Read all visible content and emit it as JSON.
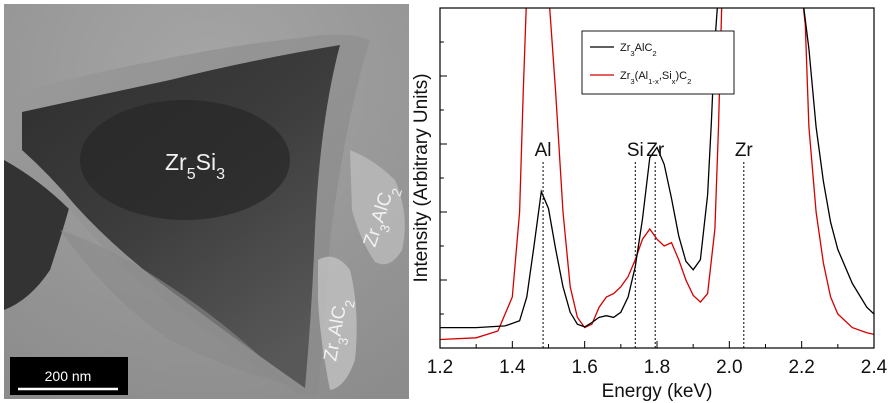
{
  "micrograph": {
    "labels": [
      {
        "text": "Zr5Si3",
        "parts": [
          [
            "Zr",
            0
          ],
          [
            "5",
            1
          ],
          [
            "Si",
            0
          ],
          [
            "3",
            1
          ]
        ]
      },
      {
        "text": "Zr3AlC2",
        "parts": [
          [
            "Zr",
            0
          ],
          [
            "3",
            1
          ],
          [
            "AlC",
            0
          ],
          [
            "2",
            1
          ]
        ]
      },
      {
        "text": "Zr3AlC2",
        "parts": [
          [
            "Zr",
            0
          ],
          [
            "3",
            1
          ],
          [
            "AlC",
            0
          ],
          [
            "2",
            1
          ]
        ]
      }
    ],
    "scale_bar_label": "200 nm"
  },
  "chart_data": {
    "type": "line",
    "xlabel": "Energy (keV)",
    "ylabel": "Intensity (Arbitrary Units)",
    "xlim": [
      1.2,
      2.4
    ],
    "ylim": [
      0,
      10
    ],
    "x_ticks": [
      "1.2",
      "1.4",
      "1.6",
      "1.8",
      "2.0",
      "2.2",
      "2.4"
    ],
    "y_ticks_labeled": false,
    "grid": false,
    "legend_position": "top-center",
    "series": [
      {
        "name": "Zr3AlC2",
        "name_parts": [
          [
            "Zr",
            0
          ],
          [
            "3",
            1
          ],
          [
            "AlC",
            0
          ],
          [
            "2",
            1
          ]
        ],
        "color": "#000000",
        "x": [
          1.2,
          1.3,
          1.38,
          1.42,
          1.44,
          1.46,
          1.48,
          1.5,
          1.52,
          1.54,
          1.56,
          1.58,
          1.6,
          1.62,
          1.64,
          1.66,
          1.68,
          1.7,
          1.72,
          1.74,
          1.76,
          1.78,
          1.8,
          1.82,
          1.84,
          1.86,
          1.88,
          1.9,
          1.92,
          1.94,
          1.95,
          1.96,
          1.97,
          2.0,
          2.1,
          2.2,
          2.22,
          2.24,
          2.26,
          2.28,
          2.3,
          2.34,
          2.38,
          2.4
        ],
        "y": [
          0.6,
          0.6,
          0.65,
          0.8,
          1.5,
          3.0,
          4.6,
          4.1,
          2.9,
          1.8,
          1.05,
          0.7,
          0.62,
          0.75,
          0.9,
          0.95,
          0.9,
          1.05,
          1.5,
          2.4,
          3.8,
          5.6,
          5.9,
          5.4,
          4.4,
          3.3,
          2.55,
          2.3,
          2.6,
          4.5,
          6.6,
          9.0,
          10.5,
          10.5,
          10.5,
          10.5,
          8.8,
          6.5,
          4.9,
          3.7,
          2.9,
          1.9,
          1.2,
          1.0
        ]
      },
      {
        "name": "Zr3(Al1-x,Six)C2",
        "name_parts": [
          [
            "Zr",
            0
          ],
          [
            "3",
            1
          ],
          [
            "(Al",
            0
          ],
          [
            "1-x",
            1
          ],
          [
            ",Si",
            0
          ],
          [
            "x",
            1
          ],
          [
            ")C",
            0
          ],
          [
            "2",
            1
          ]
        ],
        "color": "#d40000",
        "x": [
          1.2,
          1.3,
          1.36,
          1.4,
          1.42,
          1.43,
          1.44,
          1.45,
          1.5,
          1.52,
          1.54,
          1.56,
          1.58,
          1.6,
          1.62,
          1.64,
          1.66,
          1.68,
          1.7,
          1.72,
          1.74,
          1.76,
          1.78,
          1.8,
          1.82,
          1.84,
          1.86,
          1.88,
          1.9,
          1.92,
          1.94,
          1.96,
          1.97,
          1.98,
          2.0,
          2.1,
          2.2,
          2.21,
          2.22,
          2.24,
          2.26,
          2.28,
          2.3,
          2.34,
          2.38,
          2.4
        ],
        "y": [
          0.25,
          0.3,
          0.5,
          1.5,
          4.0,
          7.5,
          10.5,
          10.5,
          10.5,
          7.5,
          4.0,
          1.8,
          0.9,
          0.6,
          0.7,
          1.2,
          1.5,
          1.6,
          1.8,
          2.1,
          2.6,
          3.2,
          3.5,
          3.2,
          3.0,
          3.1,
          2.6,
          2.0,
          1.55,
          1.35,
          1.6,
          3.5,
          6.5,
          10.5,
          10.5,
          10.5,
          10.5,
          9.5,
          6.5,
          4.0,
          2.5,
          1.5,
          1.0,
          0.6,
          0.45,
          0.4
        ]
      }
    ],
    "annotations": [
      {
        "text": "Al",
        "x": 1.485
      },
      {
        "text": "Si",
        "x": 1.74
      },
      {
        "text": "Zr",
        "x": 1.795
      },
      {
        "text": "Zr",
        "x": 2.04
      }
    ]
  }
}
